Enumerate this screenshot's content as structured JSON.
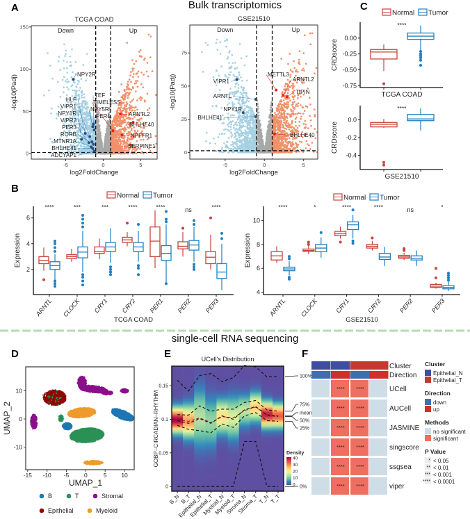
{
  "header": {
    "bulk_title": "Bulk transcriptomics",
    "sc_title": "single-cell RNA sequencing"
  },
  "panel_labels": {
    "A": "A",
    "B": "B",
    "C": "C",
    "D": "D",
    "E": "E",
    "F": "F"
  },
  "colors": {
    "normal": "#c8433a",
    "tumor": "#1f7fc1",
    "down_points": "#a6d1e3",
    "up_points": "#f0916b",
    "ns_points": "#a8a8a8",
    "down_gene": "#2b4d80",
    "up_gene": "#e3241f",
    "divider": "#b6dbb0"
  },
  "chart_data": [
    {
      "id": "volcano_tcga",
      "type": "scatter",
      "title": "TCGA COAD",
      "xlabel": "log2FoldChange",
      "ylabel": "-log10(Padj)",
      "xlim": [
        -9.6,
        7.2
      ],
      "ylim": [
        -6.5,
        151.5
      ],
      "xticks": [
        "-5",
        "0",
        "5"
      ],
      "yticks": [
        "0",
        "50",
        "100",
        "150"
      ],
      "log2fc_threshold": [
        -1,
        1
      ],
      "region_labels": {
        "down": "Down",
        "up": "Up"
      },
      "labeled_genes": [
        {
          "gene": "NPY2R",
          "x": -4.0,
          "y": 88,
          "dir": "down"
        },
        {
          "gene": "TEF",
          "x": -1.3,
          "y": 35,
          "dir": "down"
        },
        {
          "gene": "NPY5R",
          "x": -1.4,
          "y": 32,
          "dir": "down"
        },
        {
          "gene": "PER1",
          "x": -1.2,
          "y": 28,
          "dir": "down"
        },
        {
          "gene": "HLF",
          "x": -2.4,
          "y": 24,
          "dir": "down"
        },
        {
          "gene": "VIPR1",
          "x": -1.8,
          "y": 20,
          "dir": "down"
        },
        {
          "gene": "NPY1R",
          "x": -2.9,
          "y": 17,
          "dir": "down"
        },
        {
          "gene": "VIPR2",
          "x": -1.5,
          "y": 14,
          "dir": "down"
        },
        {
          "gene": "PER3",
          "x": -1.9,
          "y": 13,
          "dir": "down"
        },
        {
          "gene": "RORB",
          "x": -1.3,
          "y": 11,
          "dir": "down"
        },
        {
          "gene": "MTNR1A",
          "x": -1.6,
          "y": 8,
          "dir": "down"
        },
        {
          "gene": "BHLHE41",
          "x": -1.4,
          "y": 6,
          "dir": "down"
        },
        {
          "gene": "ADCYAP1",
          "x": -1.2,
          "y": 3,
          "dir": "down"
        },
        {
          "gene": "TIMELESS",
          "x": 1.3,
          "y": 27,
          "dir": "up"
        },
        {
          "gene": "ARNTL2",
          "x": 2.3,
          "y": 47,
          "dir": "up"
        },
        {
          "gene": "BHLHE40",
          "x": 4.0,
          "y": 37,
          "dir": "up"
        },
        {
          "gene": "NPFFR1",
          "x": 2.5,
          "y": 22,
          "dir": "up"
        },
        {
          "gene": "SERPINE1",
          "x": 3.7,
          "y": 10,
          "dir": "up"
        }
      ]
    },
    {
      "id": "volcano_gse",
      "type": "scatter",
      "title": "GSE21510",
      "xlabel": "log2FoldChange",
      "ylabel": "-log10(Padj)",
      "xlim": [
        -9.5,
        6.8
      ],
      "ylim": [
        -5,
        96
      ],
      "xticks": [
        "-5",
        "0",
        "5"
      ],
      "yticks": [
        "0",
        "25",
        "50",
        "75"
      ],
      "log2fc_threshold": [
        -1,
        1
      ],
      "region_labels": {
        "down": "Down",
        "up": "Up"
      },
      "labeled_genes": [
        {
          "gene": "VIPR1",
          "x": -3.5,
          "y": 55,
          "dir": "down"
        },
        {
          "gene": "ARNTL",
          "x": -1.1,
          "y": 40,
          "dir": "down"
        },
        {
          "gene": "NPY1R",
          "x": -2.7,
          "y": 30,
          "dir": "down"
        },
        {
          "gene": "BHLHE41",
          "x": -1.1,
          "y": 27,
          "dir": "down"
        },
        {
          "gene": "METTL3",
          "x": 1.5,
          "y": 47,
          "dir": "up"
        },
        {
          "gene": "ARNTL2",
          "x": 2.4,
          "y": 43,
          "dir": "up"
        },
        {
          "gene": "TIPIN",
          "x": 2.9,
          "y": 42,
          "dir": "up"
        },
        {
          "gene": "BHLHE40",
          "x": 1.3,
          "y": 14,
          "dir": "up"
        }
      ]
    },
    {
      "id": "box_tcga",
      "type": "box",
      "xlabel": "TCGA COAD",
      "ylabel": "Expression",
      "ylim": [
        0.05,
        6.9
      ],
      "yticks": [
        2,
        4,
        6
      ],
      "legend": [
        "Normal",
        "Tumor"
      ],
      "categories": [
        "ARNTL",
        "CLOCK",
        "CRY1",
        "CRY2",
        "PER1",
        "PER2",
        "PER3"
      ],
      "significance": [
        "****",
        "***",
        "***",
        "****",
        "****",
        "ns",
        "****"
      ],
      "series": [
        {
          "name": "Normal",
          "stats": [
            [
              1.9,
              2.45,
              2.7,
              3.0,
              3.7
            ],
            [
              2.6,
              2.85,
              3.0,
              3.15,
              3.6
            ],
            [
              2.8,
              3.25,
              3.4,
              3.75,
              4.4
            ],
            [
              3.8,
              4.1,
              4.3,
              4.5,
              4.9
            ],
            [
              2.1,
              3.0,
              4.2,
              5.3,
              6.6
            ],
            [
              3.0,
              3.6,
              3.8,
              4.15,
              4.9
            ],
            [
              2.0,
              2.45,
              2.95,
              3.4,
              4.7
            ]
          ],
          "outliers": [
            [
              1.2
            ],
            [],
            [],
            [
              5.6
            ],
            [],
            [
              5.2
            ],
            [
              6.0
            ]
          ]
        },
        {
          "name": "Tumor",
          "stats": [
            [
              1.2,
              2.0,
              2.3,
              2.6,
              3.2
            ],
            [
              1.8,
              2.9,
              3.35,
              3.75,
              5.0
            ],
            [
              2.5,
              3.4,
              3.75,
              4.1,
              5.2
            ],
            [
              2.6,
              3.4,
              3.75,
              4.1,
              5.0
            ],
            [
              1.0,
              2.7,
              3.25,
              3.85,
              5.5
            ],
            [
              2.6,
              3.5,
              3.9,
              4.25,
              5.3
            ],
            [
              0.4,
              1.3,
              1.8,
              2.45,
              4.0
            ]
          ],
          "outliers": [
            [
              0.7,
              0.9,
              1.1,
              3.4,
              3.7,
              4.0,
              4.2
            ],
            [
              0.8,
              1.1,
              1.4,
              1.6,
              5.3,
              5.6,
              5.9,
              6.2
            ],
            [
              1.6,
              1.8,
              2.0,
              2.2
            ],
            [
              1.6,
              2.1,
              2.3,
              5.5
            ],
            [
              0.9,
              5.7,
              5.9,
              6.5
            ],
            [
              2.0,
              2.2,
              2.4,
              5.5,
              5.8
            ],
            [
              4.4,
              4.8
            ]
          ]
        }
      ]
    },
    {
      "id": "box_gse",
      "type": "box",
      "xlabel": "GSE21510",
      "ylabel": "Expression",
      "ylim": [
        3.8,
        11.2
      ],
      "yticks": [
        4,
        6,
        8,
        10
      ],
      "legend": [
        "Normal",
        "Tumor"
      ],
      "categories": [
        "ARNTL",
        "CLOCK",
        "CRY1",
        "CRY2",
        "PER2",
        "PER3"
      ],
      "significance": [
        "****",
        "*",
        "****",
        "****",
        "ns",
        "*"
      ],
      "series": [
        {
          "name": "Normal",
          "stats": [
            [
              6.45,
              6.7,
              7.05,
              7.4,
              7.85
            ],
            [
              7.2,
              7.42,
              7.5,
              7.62,
              7.9
            ],
            [
              8.5,
              8.75,
              8.9,
              9.1,
              9.5
            ],
            [
              7.5,
              7.7,
              7.85,
              8.0,
              8.3
            ],
            [
              6.7,
              6.85,
              6.95,
              7.08,
              7.3
            ],
            [
              4.3,
              4.4,
              4.5,
              4.65,
              4.8
            ]
          ],
          "outliers": [
            [],
            [
              8.0,
              8.2
            ],
            [
              8.2
            ],
            [
              8.55
            ],
            [
              7.5,
              7.65
            ],
            [
              5.2,
              6.0
            ]
          ]
        },
        {
          "name": "Tumor",
          "stats": [
            [
              5.4,
              5.8,
              5.95,
              6.1,
              6.6
            ],
            [
              6.9,
              7.4,
              7.7,
              8.0,
              8.6
            ],
            [
              8.5,
              9.25,
              9.65,
              9.9,
              10.5
            ],
            [
              6.2,
              6.75,
              6.95,
              7.25,
              7.8
            ],
            [
              6.2,
              6.7,
              6.85,
              7.05,
              7.5
            ],
            [
              4.1,
              4.28,
              4.4,
              4.55,
              4.9
            ]
          ],
          "outliers": [
            [
              5.1,
              5.25,
              6.8,
              7.0
            ],
            [
              9.0
            ],
            [
              8.1,
              8.3,
              10.9
            ],
            [],
            [],
            [
              5.0,
              5.2,
              5.4,
              5.6
            ]
          ]
        }
      ]
    },
    {
      "id": "crd_tcga",
      "type": "box",
      "xlabel": "TCGA COAD",
      "ylabel": "CRDscore",
      "ylim": [
        -0.78,
        0.25
      ],
      "yticks": [
        "0.00",
        "-0.25",
        "-0.50",
        "-0.75"
      ],
      "ytick_values": [
        0,
        -0.25,
        -0.5,
        -0.75
      ],
      "legend": [
        "Normal",
        "Tumor"
      ],
      "significance": "****",
      "series": [
        {
          "name": "Normal",
          "stats": [
            -0.52,
            -0.33,
            -0.22,
            -0.18,
            -0.1
          ],
          "outliers": [
            -0.72
          ]
        },
        {
          "name": "Tumor",
          "stats": [
            -0.19,
            -0.02,
            0.03,
            0.08,
            0.2
          ],
          "outliers": [
            -0.21,
            -0.25,
            -0.28,
            -0.31,
            -0.35,
            -0.43
          ]
        }
      ]
    },
    {
      "id": "crd_gse",
      "type": "box",
      "xlabel": "GSE21510",
      "ylabel": "CRDscore",
      "ylim": [
        -0.56,
        0.16
      ],
      "yticks": [
        "0.0",
        "-0.2",
        "-0.4"
      ],
      "ytick_values": [
        0,
        -0.2,
        -0.4
      ],
      "significance": "****",
      "series": [
        {
          "name": "Normal",
          "stats": [
            -0.09,
            -0.08,
            -0.05,
            -0.03,
            0.01
          ],
          "outliers": [
            -0.48,
            -0.51
          ]
        },
        {
          "name": "Tumor",
          "stats": [
            -0.12,
            -0.01,
            0.01,
            0.06,
            0.13
          ],
          "outliers": []
        }
      ]
    },
    {
      "id": "umap",
      "type": "scatter",
      "xlabel": "UMAP_1",
      "ylabel": "UMAP_2",
      "xlim": [
        -15.5,
        12.5
      ],
      "ylim": [
        -18,
        18.5
      ],
      "xticks": [
        -15,
        -10,
        -5,
        0,
        5,
        10
      ],
      "yticks": [
        -10,
        0,
        10
      ],
      "legend_position": "bottom",
      "clusters": [
        {
          "name": "B",
          "color": "#1f77b4"
        },
        {
          "name": "T",
          "color": "#2b9157"
        },
        {
          "name": "Stromal",
          "color": "#8b0f8b"
        },
        {
          "name": "Epithelial",
          "color": "#8b0a05"
        },
        {
          "name": "Myeloid",
          "color": "#ef9a2d"
        }
      ]
    },
    {
      "id": "ucell_distribution",
      "type": "heatmap",
      "title": "UCell's Distribution",
      "ylabel": "GOBP−CIRCADIAN−RHYTHM",
      "ylim": [
        -0.007,
        0.179
      ],
      "yticks": [
        "0",
        "0.05",
        "0.1",
        "0.15"
      ],
      "ytick_values": [
        0,
        0.05,
        0.1,
        0.15
      ],
      "categories": [
        "B_N",
        "B_T",
        "Epithelial_N",
        "Epithelial_T",
        "Myeloid_N",
        "Myeloid_T",
        "Stroma_N",
        "Stroma_T",
        "T_N",
        "T_T"
      ],
      "quantiles": {
        "100%": [
          0.158,
          0.142,
          0.165,
          0.168,
          0.156,
          0.162,
          0.18,
          0.178,
          0.163,
          0.164
        ],
        "75%": [
          0.107,
          0.106,
          0.12,
          0.112,
          0.115,
          0.115,
          0.125,
          0.128,
          0.114,
          0.112
        ],
        "mean": [
          0.099,
          0.097,
          0.102,
          0.095,
          0.104,
          0.102,
          0.113,
          0.118,
          0.107,
          0.105
        ],
        "50%": [
          0.098,
          0.094,
          0.101,
          0.094,
          0.105,
          0.1,
          0.114,
          0.119,
          0.106,
          0.104
        ],
        "25%": [
          0.091,
          0.085,
          0.083,
          0.08,
          0.093,
          0.088,
          0.105,
          0.11,
          0.098,
          0.097
        ],
        "0%": [
          0,
          0,
          0,
          0,
          0,
          0,
          0.067,
          0.067,
          0,
          0
        ]
      },
      "density_peak": [
        40,
        28,
        14,
        12,
        22,
        17,
        15,
        24,
        38,
        33
      ],
      "colorbar": {
        "title": "Density",
        "ticks": [
          "40",
          "30",
          "20",
          "10",
          "0"
        ],
        "range": [
          0,
          40
        ],
        "colors": [
          "#5e4fa2",
          "#3288bd",
          "#66c2a5",
          "#abdda4",
          "#e6f598",
          "#fee08b",
          "#fdae61",
          "#f46d43",
          "#d53e4f",
          "#9e0142"
        ]
      }
    },
    {
      "id": "method_heatmap",
      "type": "table",
      "annotation_rows": [
        "Cluster",
        "Direction"
      ],
      "columns": [
        {
          "cluster": "Epithelial_N",
          "direction": "down"
        },
        {
          "cluster": "Epithelial_N",
          "direction": "up"
        },
        {
          "cluster": "Epithelial_T",
          "direction": "down"
        },
        {
          "cluster": "Epithelial_T",
          "direction": "up"
        }
      ],
      "rows": [
        "UCell",
        "AUCell",
        "JASMINE",
        "singscore",
        "ssgsea",
        "viper"
      ],
      "cells": [
        [
          "",
          "****",
          "****",
          ""
        ],
        [
          "",
          "****",
          "****",
          ""
        ],
        [
          "",
          "****",
          "****",
          ""
        ],
        [
          "",
          "****",
          "****",
          ""
        ],
        [
          "",
          "****",
          "****",
          ""
        ],
        [
          "",
          "****",
          "****",
          ""
        ]
      ],
      "legend": {
        "cluster": {
          "title": "Cluster",
          "items": [
            {
              "label": "Epithelial_N",
              "color": "#3e4fa3"
            },
            {
              "label": "Epithelial_T",
              "color": "#c23b30"
            }
          ]
        },
        "direction": {
          "title": "Direction",
          "items": [
            {
              "label": "down",
              "color": "#3f6fb0"
            },
            {
              "label": "up",
              "color": "#d0302a"
            }
          ]
        },
        "methods": {
          "title": "Methods",
          "items": [
            {
              "label": "no significant",
              "color": "#cfdde6"
            },
            {
              "label": "significant",
              "color": "#ee6f60"
            }
          ]
        },
        "pvalue": {
          "title": "P Value",
          "items": [
            {
              "stars": "*",
              "label": "< 0.05"
            },
            {
              "stars": "**",
              "label": "< 0.01"
            },
            {
              "stars": "***",
              "label": "< 0.001"
            },
            {
              "stars": "****",
              "label": "< 0.0001"
            }
          ]
        }
      }
    }
  ]
}
